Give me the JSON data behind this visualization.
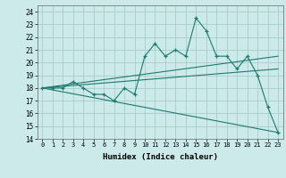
{
  "xlabel": "Humidex (Indice chaleur)",
  "ylabel": "",
  "background_color": "#cceaea",
  "line_color": "#1a7a6e",
  "grid_color": "#aacccc",
  "xlim": [
    -0.5,
    23.5
  ],
  "ylim": [
    14,
    24.5
  ],
  "xtick_labels": [
    "0",
    "1",
    "2",
    "3",
    "4",
    "5",
    "6",
    "7",
    "8",
    "9",
    "10",
    "11",
    "12",
    "13",
    "14",
    "15",
    "16",
    "17",
    "18",
    "19",
    "20",
    "21",
    "22",
    "23"
  ],
  "ytick_values": [
    14,
    15,
    16,
    17,
    18,
    19,
    20,
    21,
    22,
    23,
    24
  ],
  "series1_x": [
    0,
    1,
    2,
    3,
    4,
    5,
    6,
    7,
    8,
    9,
    10,
    11,
    12,
    13,
    14,
    15,
    16,
    17,
    18,
    19,
    20,
    21,
    22,
    23
  ],
  "series1_y": [
    18.0,
    18.0,
    18.0,
    18.5,
    18.0,
    17.5,
    17.5,
    17.0,
    18.0,
    17.5,
    20.5,
    21.5,
    20.5,
    21.0,
    20.5,
    23.5,
    22.5,
    20.5,
    20.5,
    19.5,
    20.5,
    19.0,
    16.5,
    14.5
  ],
  "series2_x": [
    0,
    23
  ],
  "series2_y": [
    18.0,
    19.5
  ],
  "series3_x": [
    0,
    23
  ],
  "series3_y": [
    18.0,
    20.5
  ],
  "series4_x": [
    0,
    23
  ],
  "series4_y": [
    18.0,
    14.5
  ]
}
